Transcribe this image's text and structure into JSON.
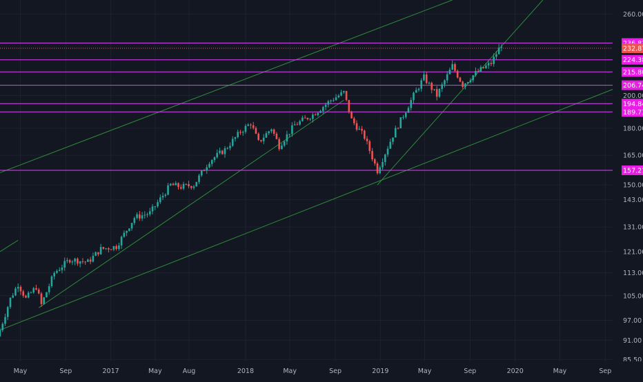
{
  "colors": {
    "background": "#131722",
    "grid": "#1e2230",
    "axis_text": "#b2b5be",
    "up_candle": "#26a69a",
    "down_candle": "#ef5350",
    "horizontal_level": "#e040fb",
    "trendline": "#2e8b3a",
    "level_label_bg": "#e91ee4",
    "last_price_bg": "#ef5350",
    "label_text": "#ffffff"
  },
  "chart_data": {
    "type": "candlestick",
    "title": "",
    "xlabel": "",
    "ylabel": "",
    "y_scale": "log",
    "ylim": [
      85,
      272
    ],
    "xlim": [
      "2016-03-07",
      "2020-09-21"
    ],
    "grid": true,
    "y_ticks": [
      "260.00",
      "200.00",
      "180.00",
      "165.00",
      "150.00",
      "143.00",
      "131.00",
      "121.00",
      "113.00",
      "105.00",
      "97.00",
      "91.00",
      "85.50"
    ],
    "x_ticks": [
      {
        "label": "May",
        "date": "2016-05-01"
      },
      {
        "label": "Sep",
        "date": "2016-09-01"
      },
      {
        "label": "2017",
        "date": "2017-01-01"
      },
      {
        "label": "May",
        "date": "2017-05-01"
      },
      {
        "label": "Aug",
        "date": "2017-08-01"
      },
      {
        "label": "2018",
        "date": "2018-01-01"
      },
      {
        "label": "May",
        "date": "2018-05-01"
      },
      {
        "label": "Sep",
        "date": "2018-09-01"
      },
      {
        "label": "2019",
        "date": "2019-01-01"
      },
      {
        "label": "May",
        "date": "2019-05-01"
      },
      {
        "label": "Sep",
        "date": "2019-09-01"
      },
      {
        "label": "2020",
        "date": "2020-01-01"
      },
      {
        "label": "May",
        "date": "2020-05-01"
      },
      {
        "label": "Sep",
        "date": "2020-09-01"
      }
    ],
    "horizontal_levels": [
      "236.81",
      "224.38",
      "215.80",
      "206.74",
      "194.84",
      "189.73",
      "157.21"
    ],
    "last_price": "232.87",
    "trendlines": [
      {
        "from": {
          "date": "2016-03-07",
          "price": 156
        },
        "to": {
          "date": "2019-07-15",
          "price": 272
        }
      },
      {
        "from": {
          "date": "2016-06-20",
          "price": 101
        },
        "to": {
          "date": "2018-09-24",
          "price": 197
        }
      },
      {
        "from": {
          "date": "2016-03-07",
          "price": 94
        },
        "to": {
          "date": "2020-09-21",
          "price": 204
        }
      },
      {
        "from": {
          "date": "2018-12-24",
          "price": 150
        },
        "to": {
          "date": "2020-03-16",
          "price": 272
        }
      },
      {
        "from": {
          "date": "2016-03-07",
          "price": 121
        },
        "to": {
          "date": "2016-04-25",
          "price": 125.5
        }
      }
    ],
    "ohlc_anchors": [
      {
        "date": "2016-03-07",
        "price": 94
      },
      {
        "date": "2016-04-04",
        "price": 104
      },
      {
        "date": "2016-04-25",
        "price": 109
      },
      {
        "date": "2016-05-16",
        "price": 104
      },
      {
        "date": "2016-06-13",
        "price": 108
      },
      {
        "date": "2016-06-27",
        "price": 102
      },
      {
        "date": "2016-08-01",
        "price": 113
      },
      {
        "date": "2016-09-12",
        "price": 118
      },
      {
        "date": "2016-10-31",
        "price": 117
      },
      {
        "date": "2016-12-05",
        "price": 122
      },
      {
        "date": "2017-01-16",
        "price": 123
      },
      {
        "date": "2017-03-06",
        "price": 135
      },
      {
        "date": "2017-04-17",
        "price": 137
      },
      {
        "date": "2017-06-12",
        "price": 150
      },
      {
        "date": "2017-07-10",
        "price": 149
      },
      {
        "date": "2017-08-14",
        "price": 150
      },
      {
        "date": "2017-09-25",
        "price": 162
      },
      {
        "date": "2017-11-06",
        "price": 168
      },
      {
        "date": "2017-12-18",
        "price": 178
      },
      {
        "date": "2018-01-15",
        "price": 183
      },
      {
        "date": "2018-02-05",
        "price": 172
      },
      {
        "date": "2018-03-12",
        "price": 180
      },
      {
        "date": "2018-04-02",
        "price": 170
      },
      {
        "date": "2018-05-14",
        "price": 182
      },
      {
        "date": "2018-07-02",
        "price": 188
      },
      {
        "date": "2018-08-20",
        "price": 197
      },
      {
        "date": "2018-09-24",
        "price": 202
      },
      {
        "date": "2018-10-15",
        "price": 185
      },
      {
        "date": "2018-11-19",
        "price": 175
      },
      {
        "date": "2018-12-24",
        "price": 157
      },
      {
        "date": "2019-02-04",
        "price": 176
      },
      {
        "date": "2019-04-01",
        "price": 200
      },
      {
        "date": "2019-04-29",
        "price": 212
      },
      {
        "date": "2019-06-03",
        "price": 200
      },
      {
        "date": "2019-07-15",
        "price": 220
      },
      {
        "date": "2019-08-12",
        "price": 207
      },
      {
        "date": "2019-09-16",
        "price": 215
      },
      {
        "date": "2019-10-28",
        "price": 222
      },
      {
        "date": "2019-11-25",
        "price": 236
      }
    ]
  }
}
